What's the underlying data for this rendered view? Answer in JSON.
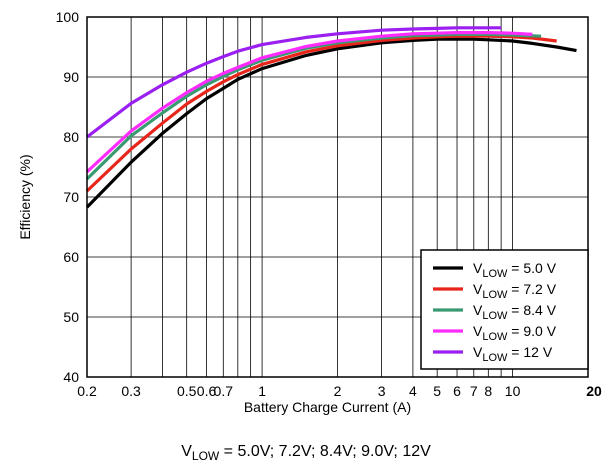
{
  "chart_data": {
    "type": "line",
    "xlabel": "Battery Charge Current (A)",
    "ylabel": "Efficiency (%)",
    "xscale": "log",
    "xlim": [
      0.2,
      20
    ],
    "ylim": [
      40,
      100
    ],
    "x_ticks": [
      0.2,
      0.3,
      0.5,
      0.6,
      0.7,
      1,
      2,
      3,
      4,
      5,
      6,
      7,
      8,
      10,
      20
    ],
    "x_tick_labels": [
      "0.2",
      "0.3",
      "0.5",
      "0.6",
      "0.7",
      "1",
      "2",
      "3",
      "4",
      "5",
      "6",
      "7",
      "8",
      "10",
      "20"
    ],
    "y_ticks": [
      40,
      50,
      60,
      70,
      80,
      90,
      100
    ],
    "y_tick_labels": [
      "40",
      "50",
      "60",
      "70",
      "80",
      "90",
      "100"
    ],
    "grid": true,
    "legend_position": "bottom-right",
    "caption": {
      "prefix": "V",
      "sub": "LOW",
      "rest": " = 5.0V; 7.2V; 8.4V; 9.0V; 12V"
    },
    "series": [
      {
        "name": "VLOW = 5.0 V",
        "legend": {
          "prefix": "V",
          "sub": "LOW",
          "rest": " = 5.0 V"
        },
        "color": "#000000",
        "x": [
          0.2,
          0.3,
          0.4,
          0.5,
          0.6,
          0.7,
          0.8,
          1,
          1.5,
          2,
          3,
          4,
          5,
          6,
          7,
          8,
          10,
          12,
          15,
          18
        ],
        "y": [
          68.3,
          75.8,
          80.6,
          83.9,
          86.4,
          88.1,
          89.6,
          91.4,
          93.6,
          94.7,
          95.7,
          96.1,
          96.3,
          96.3,
          96.3,
          96.2,
          96.0,
          95.6,
          95.0,
          94.4
        ]
      },
      {
        "name": "VLOW = 7.2 V",
        "legend": {
          "prefix": "V",
          "sub": "LOW",
          "rest": " = 7.2 V"
        },
        "color": "#e8251b",
        "x": [
          0.2,
          0.3,
          0.4,
          0.5,
          0.6,
          0.7,
          0.8,
          1,
          1.5,
          2,
          3,
          4,
          5,
          6,
          7,
          8,
          10,
          12,
          15
        ],
        "y": [
          71.0,
          78.0,
          82.3,
          85.5,
          87.6,
          89.2,
          90.4,
          92.1,
          94.2,
          95.2,
          96.1,
          96.5,
          96.7,
          96.8,
          96.8,
          96.8,
          96.7,
          96.5,
          96.0
        ]
      },
      {
        "name": "VLOW = 8.4 V",
        "legend": {
          "prefix": "V",
          "sub": "LOW",
          "rest": " = 8.4 V"
        },
        "color": "#3a9a72",
        "x": [
          0.2,
          0.3,
          0.4,
          0.5,
          0.6,
          0.7,
          0.8,
          1,
          1.5,
          2,
          3,
          4,
          5,
          6,
          7,
          8,
          10,
          13
        ],
        "y": [
          73.0,
          80.2,
          84.0,
          86.8,
          88.7,
          90.1,
          91.2,
          92.8,
          94.8,
          95.7,
          96.5,
          96.9,
          97.0,
          97.1,
          97.1,
          97.1,
          97.0,
          96.8
        ]
      },
      {
        "name": "VLOW = 9.0 V",
        "legend": {
          "prefix": "V",
          "sub": "LOW",
          "rest": " = 9.0 V"
        },
        "color": "#ff2bff",
        "x": [
          0.2,
          0.3,
          0.4,
          0.5,
          0.6,
          0.7,
          0.8,
          1,
          1.5,
          2,
          3,
          4,
          5,
          6,
          7,
          8,
          10,
          12
        ],
        "y": [
          74.2,
          81.0,
          84.8,
          87.4,
          89.3,
          90.6,
          91.6,
          93.2,
          95.1,
          96.0,
          96.8,
          97.2,
          97.3,
          97.4,
          97.4,
          97.4,
          97.3,
          97.1
        ]
      },
      {
        "name": "VLOW = 12 V",
        "legend": {
          "prefix": "V",
          "sub": "LOW",
          "rest": " = 12 V"
        },
        "color": "#9a1ff0",
        "x": [
          0.2,
          0.3,
          0.4,
          0.5,
          0.6,
          0.7,
          0.8,
          1,
          1.5,
          2,
          3,
          4,
          5,
          6,
          7,
          8,
          9
        ],
        "y": [
          80.0,
          85.6,
          88.7,
          90.8,
          92.3,
          93.4,
          94.3,
          95.4,
          96.6,
          97.2,
          97.8,
          98.0,
          98.1,
          98.2,
          98.2,
          98.2,
          98.2
        ]
      }
    ]
  }
}
